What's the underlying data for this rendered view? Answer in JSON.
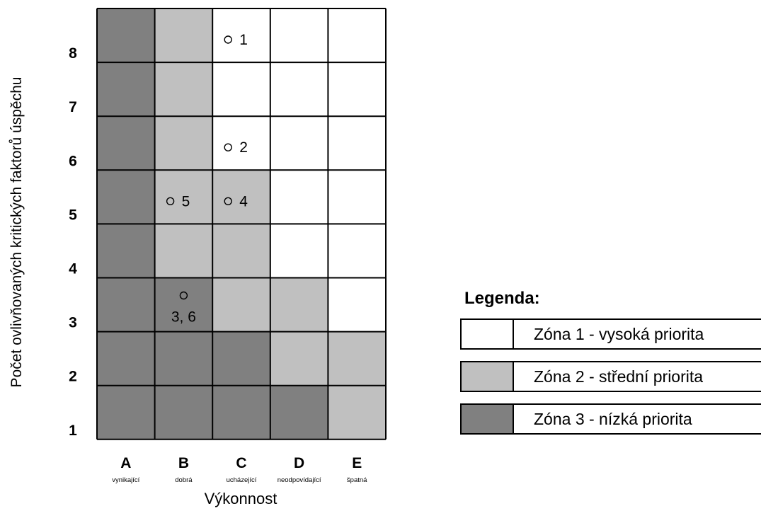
{
  "y_axis_label": "Počet ovlivňovaných kritických faktorů úspěchu",
  "x_axis_label": "Výkonnost",
  "columns": [
    {
      "letter": "A",
      "desc": "vynikající"
    },
    {
      "letter": "B",
      "desc": "dobrá"
    },
    {
      "letter": "C",
      "desc": "ucházející"
    },
    {
      "letter": "D",
      "desc": "neodpovídající"
    },
    {
      "letter": "E",
      "desc": "špatná"
    }
  ],
  "rows": [
    "8",
    "7",
    "6",
    "5",
    "4",
    "3",
    "2",
    "1"
  ],
  "zone_colors": {
    "1": "#ffffff",
    "2": "#c0c0c0",
    "3": "#808080"
  },
  "grid_zones": [
    [
      3,
      2,
      1,
      1,
      1
    ],
    [
      3,
      2,
      1,
      1,
      1
    ],
    [
      3,
      2,
      1,
      1,
      1
    ],
    [
      3,
      2,
      2,
      1,
      1
    ],
    [
      3,
      2,
      2,
      1,
      1
    ],
    [
      3,
      3,
      2,
      2,
      1
    ],
    [
      3,
      3,
      3,
      2,
      2
    ],
    [
      3,
      3,
      3,
      3,
      2
    ]
  ],
  "markers": [
    {
      "row": 0,
      "col": 2,
      "label": "1",
      "layout": "inline"
    },
    {
      "row": 2,
      "col": 2,
      "label": "2",
      "layout": "inline"
    },
    {
      "row": 3,
      "col": 1,
      "label": "5",
      "layout": "inline"
    },
    {
      "row": 3,
      "col": 2,
      "label": "4",
      "layout": "inline"
    },
    {
      "row": 5,
      "col": 1,
      "label": "3, 6",
      "layout": "stacked"
    }
  ],
  "legend": {
    "title": "Legenda:",
    "items": [
      {
        "zone": "1",
        "label": "Zóna 1 - vysoká priorita"
      },
      {
        "zone": "2",
        "label": "Zóna 2 - střední priorita"
      },
      {
        "zone": "3",
        "label": "Zóna 3 -  nízká priorita"
      }
    ]
  }
}
